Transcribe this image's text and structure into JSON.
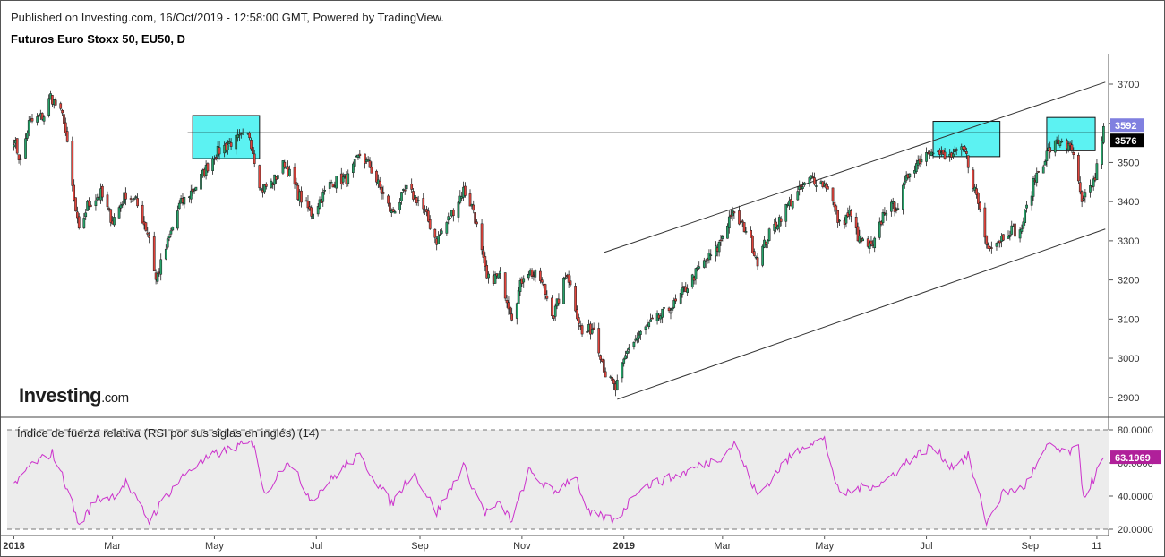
{
  "header": {
    "published": "Published on Investing.com, 16/Oct/2019 - 12:58:00 GMT, Powered by TradingView.",
    "instrument": "Futuros Euro Stoxx 50, EU50, D"
  },
  "watermark": {
    "brand": "Investing",
    "suffix": ".com"
  },
  "colors": {
    "up": "#26a269",
    "down": "#e0443c",
    "wick": "#222222",
    "rsi_line": "#cc33cc",
    "rsi_band_fill": "#ececec",
    "highlight_box": "#40f0f0",
    "price_badge": "#8080e0",
    "ref_badge": "#000000",
    "rsi_badge": "#b0209a"
  },
  "chart_data": [
    {
      "type": "candlestick",
      "title": "Futuros Euro Stoxx 50, EU50, D",
      "x_range": [
        "2017-12-28",
        "2019-10-18"
      ],
      "ylim": [
        2860,
        3760
      ],
      "y_ticks": [
        "3700",
        "3600",
        "3500",
        "3400",
        "3300",
        "3200",
        "3100",
        "3000",
        "2900"
      ],
      "x_ticks": [
        {
          "label": "2018",
          "date": "2018-01-01"
        },
        {
          "label": "Mar",
          "date": "2018-03-01"
        },
        {
          "label": "May",
          "date": "2018-05-01"
        },
        {
          "label": "Jul",
          "date": "2018-07-01"
        },
        {
          "label": "Sep",
          "date": "2018-09-01"
        },
        {
          "label": "Nov",
          "date": "2018-11-01"
        },
        {
          "label": "2019",
          "date": "2019-01-01"
        },
        {
          "label": "Mar",
          "date": "2019-03-01"
        },
        {
          "label": "May",
          "date": "2019-05-01"
        },
        {
          "label": "Jul",
          "date": "2019-07-01"
        },
        {
          "label": "Sep",
          "date": "2019-09-01"
        },
        {
          "label": "11",
          "date": "2019-10-11"
        }
      ],
      "price_path": [
        [
          "2018-01-01",
          3560
        ],
        [
          "2018-01-05",
          3500
        ],
        [
          "2018-01-10",
          3600
        ],
        [
          "2018-01-19",
          3620
        ],
        [
          "2018-01-23",
          3670
        ],
        [
          "2018-01-31",
          3610
        ],
        [
          "2018-02-06",
          3400
        ],
        [
          "2018-02-09",
          3320
        ],
        [
          "2018-02-14",
          3390
        ],
        [
          "2018-02-22",
          3420
        ],
        [
          "2018-03-01",
          3350
        ],
        [
          "2018-03-09",
          3420
        ],
        [
          "2018-03-15",
          3400
        ],
        [
          "2018-03-23",
          3310
        ],
        [
          "2018-03-27",
          3200
        ],
        [
          "2018-04-02",
          3280
        ],
        [
          "2018-04-10",
          3390
        ],
        [
          "2018-04-20",
          3440
        ],
        [
          "2018-05-01",
          3520
        ],
        [
          "2018-05-10",
          3550
        ],
        [
          "2018-05-22",
          3570
        ],
        [
          "2018-05-29",
          3430
        ],
        [
          "2018-06-05",
          3450
        ],
        [
          "2018-06-12",
          3500
        ],
        [
          "2018-06-20",
          3420
        ],
        [
          "2018-06-28",
          3370
        ],
        [
          "2018-07-10",
          3450
        ],
        [
          "2018-07-20",
          3460
        ],
        [
          "2018-07-27",
          3520
        ],
        [
          "2018-08-02",
          3490
        ],
        [
          "2018-08-15",
          3370
        ],
        [
          "2018-08-24",
          3430
        ],
        [
          "2018-09-01",
          3400
        ],
        [
          "2018-09-11",
          3300
        ],
        [
          "2018-09-20",
          3370
        ],
        [
          "2018-09-27",
          3430
        ],
        [
          "2018-10-03",
          3380
        ],
        [
          "2018-10-11",
          3200
        ],
        [
          "2018-10-19",
          3210
        ],
        [
          "2018-10-26",
          3110
        ],
        [
          "2018-11-03",
          3230
        ],
        [
          "2018-11-12",
          3200
        ],
        [
          "2018-11-20",
          3110
        ],
        [
          "2018-11-28",
          3220
        ],
        [
          "2018-12-07",
          3060
        ],
        [
          "2018-12-14",
          3080
        ],
        [
          "2018-12-21",
          2960
        ],
        [
          "2018-12-27",
          2920
        ],
        [
          "2019-01-04",
          3030
        ],
        [
          "2019-01-15",
          3080
        ],
        [
          "2019-02-01",
          3140
        ],
        [
          "2019-02-15",
          3230
        ],
        [
          "2019-02-26",
          3280
        ],
        [
          "2019-03-06",
          3370
        ],
        [
          "2019-03-15",
          3330
        ],
        [
          "2019-03-22",
          3250
        ],
        [
          "2019-03-28",
          3310
        ],
        [
          "2019-04-09",
          3390
        ],
        [
          "2019-04-23",
          3460
        ],
        [
          "2019-05-03",
          3440
        ],
        [
          "2019-05-10",
          3340
        ],
        [
          "2019-05-16",
          3370
        ],
        [
          "2019-05-22",
          3300
        ],
        [
          "2019-05-30",
          3280
        ],
        [
          "2019-06-06",
          3380
        ],
        [
          "2019-06-14",
          3390
        ],
        [
          "2019-06-21",
          3480
        ],
        [
          "2019-07-04",
          3540
        ],
        [
          "2019-07-12",
          3510
        ],
        [
          "2019-07-24",
          3530
        ],
        [
          "2019-08-02",
          3380
        ],
        [
          "2019-08-06",
          3290
        ],
        [
          "2019-08-13",
          3300
        ],
        [
          "2019-08-20",
          3330
        ],
        [
          "2019-08-26",
          3320
        ],
        [
          "2019-09-04",
          3460
        ],
        [
          "2019-09-12",
          3530
        ],
        [
          "2019-09-20",
          3560
        ],
        [
          "2019-09-27",
          3520
        ],
        [
          "2019-10-02",
          3390
        ],
        [
          "2019-10-04",
          3410
        ],
        [
          "2019-10-10",
          3460
        ],
        [
          "2019-10-15",
          3592
        ]
      ],
      "horizontal_line": {
        "value": 3576,
        "from": "2018-04-15",
        "to": "2019-10-15"
      },
      "channel": {
        "upper": [
          [
            "2018-12-20",
            3270
          ],
          [
            "2019-10-16",
            3705
          ]
        ],
        "lower": [
          [
            "2018-12-28",
            2895
          ],
          [
            "2019-10-16",
            3330
          ]
        ]
      },
      "highlight_boxes": [
        {
          "from": "2018-04-18",
          "to": "2018-05-28",
          "high": 3620,
          "low": 3510
        },
        {
          "from": "2019-07-05",
          "to": "2019-08-14",
          "high": 3605,
          "low": 3515
        },
        {
          "from": "2019-09-11",
          "to": "2019-10-10",
          "high": 3615,
          "low": 3530
        }
      ],
      "last_price_label": "3592",
      "ref_price_label": "3576"
    },
    {
      "type": "line",
      "title": "Índice de fuerza relativa (RSI por sus siglas en inglés) (14)",
      "ylim": [
        17,
        87
      ],
      "y_ticks": [
        "80.0000",
        "60.0000",
        "40.0000",
        "20.0000"
      ],
      "band": [
        20,
        80
      ],
      "rsi_path": [
        [
          "2018-01-01",
          45
        ],
        [
          "2018-01-10",
          58
        ],
        [
          "2018-01-24",
          66
        ],
        [
          "2018-02-02",
          45
        ],
        [
          "2018-02-09",
          22
        ],
        [
          "2018-02-19",
          38
        ],
        [
          "2018-03-01",
          40
        ],
        [
          "2018-03-09",
          48
        ],
        [
          "2018-03-23",
          25
        ],
        [
          "2018-04-02",
          40
        ],
        [
          "2018-04-15",
          55
        ],
        [
          "2018-05-01",
          65
        ],
        [
          "2018-05-15",
          70
        ],
        [
          "2018-05-25",
          72
        ],
        [
          "2018-05-31",
          40
        ],
        [
          "2018-06-07",
          52
        ],
        [
          "2018-06-14",
          62
        ],
        [
          "2018-06-28",
          38
        ],
        [
          "2018-07-12",
          52
        ],
        [
          "2018-07-20",
          60
        ],
        [
          "2018-07-27",
          64
        ],
        [
          "2018-08-15",
          35
        ],
        [
          "2018-08-28",
          55
        ],
        [
          "2018-09-11",
          30
        ],
        [
          "2018-09-27",
          58
        ],
        [
          "2018-10-10",
          30
        ],
        [
          "2018-10-19",
          35
        ],
        [
          "2018-10-26",
          25
        ],
        [
          "2018-11-05",
          55
        ],
        [
          "2018-11-20",
          42
        ],
        [
          "2018-12-03",
          53
        ],
        [
          "2018-12-10",
          30
        ],
        [
          "2018-12-27",
          25
        ],
        [
          "2019-01-10",
          45
        ],
        [
          "2019-02-01",
          52
        ],
        [
          "2019-02-15",
          58
        ],
        [
          "2019-03-01",
          64
        ],
        [
          "2019-03-08",
          72
        ],
        [
          "2019-03-22",
          40
        ],
        [
          "2019-04-05",
          58
        ],
        [
          "2019-04-20",
          72
        ],
        [
          "2019-05-01",
          74
        ],
        [
          "2019-05-10",
          40
        ],
        [
          "2019-05-22",
          45
        ],
        [
          "2019-06-05",
          48
        ],
        [
          "2019-06-21",
          62
        ],
        [
          "2019-07-04",
          70
        ],
        [
          "2019-07-16",
          58
        ],
        [
          "2019-07-26",
          64
        ],
        [
          "2019-08-06",
          24
        ],
        [
          "2019-08-16",
          42
        ],
        [
          "2019-08-28",
          45
        ],
        [
          "2019-09-06",
          60
        ],
        [
          "2019-09-13",
          72
        ],
        [
          "2019-09-20",
          66
        ],
        [
          "2019-09-30",
          68
        ],
        [
          "2019-10-03",
          40
        ],
        [
          "2019-10-10",
          52
        ],
        [
          "2019-10-15",
          63.2
        ]
      ],
      "last_value_label": "63.1969"
    }
  ]
}
